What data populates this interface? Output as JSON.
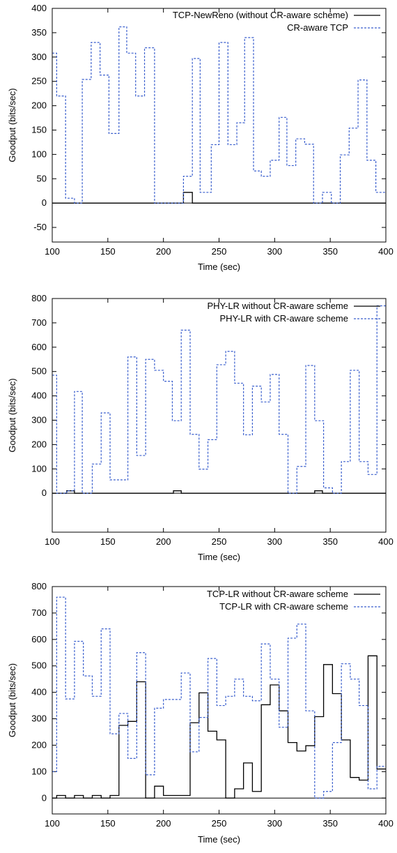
{
  "chart_data": [
    {
      "type": "line",
      "title": "",
      "xlabel": "Time (sec)",
      "ylabel": "Goodput (bits/sec)",
      "xlim": [
        100,
        400
      ],
      "ylim": [
        -80,
        400
      ],
      "xticks": [
        100,
        150,
        200,
        250,
        300,
        350,
        400
      ],
      "yticks": [
        -50,
        0,
        50,
        100,
        150,
        200,
        250,
        300,
        350,
        400
      ],
      "legend_position": "top-right",
      "step": true,
      "series": [
        {
          "name": "TCP-NewReno (without CR-aware scheme)",
          "color": "#000000",
          "dash": "solid",
          "x": [
            100,
            218,
            226,
            400
          ],
          "y": [
            0,
            22,
            0,
            0
          ]
        },
        {
          "name": "CR-aware TCP",
          "color": "#3a5fcd",
          "dash": "dashed",
          "x": [
            100,
            104,
            112,
            120,
            127,
            135,
            143,
            151,
            160,
            167,
            175,
            183,
            192,
            218,
            226,
            233,
            243,
            250,
            258,
            266,
            273,
            281,
            288,
            296,
            304,
            311,
            319,
            327,
            335,
            343,
            351,
            359,
            367,
            375,
            383,
            391,
            400
          ],
          "y": [
            308,
            220,
            10,
            0,
            254,
            330,
            263,
            143,
            362,
            308,
            220,
            319,
            0,
            55,
            297,
            22,
            120,
            330,
            120,
            165,
            340,
            66,
            55,
            88,
            176,
            77,
            132,
            121,
            0,
            22,
            0,
            99,
            154,
            253,
            88,
            22,
            22
          ]
        }
      ]
    },
    {
      "type": "line",
      "title": "",
      "xlabel": "Time (sec)",
      "ylabel": "Goodput (bits/sec)",
      "xlim": [
        100,
        400
      ],
      "ylim": [
        -160,
        800
      ],
      "xticks": [
        100,
        150,
        200,
        250,
        300,
        350,
        400
      ],
      "yticks": [
        0,
        100,
        200,
        300,
        400,
        500,
        600,
        700,
        800
      ],
      "legend_position": "top-right",
      "step": true,
      "series": [
        {
          "name": "PHY-LR without CR-aware scheme",
          "color": "#000000",
          "dash": "solid",
          "x": [
            100,
            113,
            120,
            209,
            216,
            336,
            343,
            400
          ],
          "y": [
            0,
            10,
            0,
            10,
            0,
            10,
            0,
            0
          ]
        },
        {
          "name": "PHY-LR with CR-aware scheme",
          "color": "#3a5fcd",
          "dash": "dashed",
          "x": [
            100,
            104,
            113,
            120,
            127,
            136,
            144,
            152,
            168,
            176,
            184,
            192,
            200,
            208,
            216,
            224,
            232,
            240,
            248,
            256,
            264,
            272,
            280,
            288,
            296,
            304,
            312,
            320,
            328,
            336,
            344,
            352,
            360,
            368,
            376,
            384,
            392,
            400
          ],
          "y": [
            485,
            0,
            10,
            418,
            0,
            120,
            330,
            55,
            560,
            155,
            550,
            505,
            460,
            298,
            670,
            242,
            99,
            220,
            528,
            583,
            452,
            240,
            440,
            375,
            488,
            242,
            0,
            110,
            525,
            298,
            22,
            0,
            130,
            505,
            130,
            77,
            770,
            770
          ]
        }
      ]
    },
    {
      "type": "line",
      "title": "",
      "xlabel": "Time (sec)",
      "ylabel": "Goodput (bits/sec)",
      "xlim": [
        100,
        400
      ],
      "ylim": [
        -60,
        800
      ],
      "xticks": [
        100,
        150,
        200,
        250,
        300,
        350,
        400
      ],
      "yticks": [
        0,
        100,
        200,
        300,
        400,
        500,
        600,
        700,
        800
      ],
      "legend_position": "top-right",
      "step": true,
      "series": [
        {
          "name": "TCP-LR without CR-aware scheme",
          "color": "#000000",
          "dash": "solid",
          "x": [
            100,
            104,
            112,
            120,
            128,
            136,
            144,
            152,
            160,
            168,
            176,
            184,
            192,
            200,
            208,
            216,
            224,
            232,
            240,
            248,
            256,
            264,
            272,
            280,
            288,
            296,
            304,
            312,
            320,
            328,
            336,
            344,
            352,
            360,
            368,
            376,
            384,
            392,
            400
          ],
          "y": [
            0,
            10,
            0,
            10,
            0,
            10,
            0,
            10,
            275,
            290,
            440,
            0,
            45,
            10,
            10,
            10,
            285,
            398,
            253,
            220,
            0,
            35,
            133,
            25,
            353,
            428,
            330,
            210,
            178,
            198,
            308,
            505,
            395,
            220,
            78,
            68,
            538,
            110,
            110
          ]
        },
        {
          "name": "TCP-LR with CR-aware scheme",
          "color": "#3a5fcd",
          "dash": "dashed",
          "x": [
            100,
            104,
            112,
            120,
            128,
            136,
            144,
            152,
            160,
            168,
            176,
            184,
            192,
            200,
            208,
            216,
            224,
            232,
            240,
            248,
            256,
            264,
            272,
            280,
            288,
            296,
            304,
            312,
            320,
            328,
            336,
            344,
            352,
            360,
            368,
            376,
            384,
            392,
            400
          ],
          "y": [
            100,
            760,
            375,
            593,
            462,
            385,
            640,
            243,
            320,
            150,
            550,
            88,
            340,
            373,
            373,
            473,
            175,
            305,
            528,
            350,
            385,
            450,
            385,
            368,
            583,
            450,
            268,
            605,
            658,
            330,
            0,
            25,
            210,
            508,
            450,
            350,
            35,
            120,
            120
          ]
        }
      ]
    }
  ]
}
